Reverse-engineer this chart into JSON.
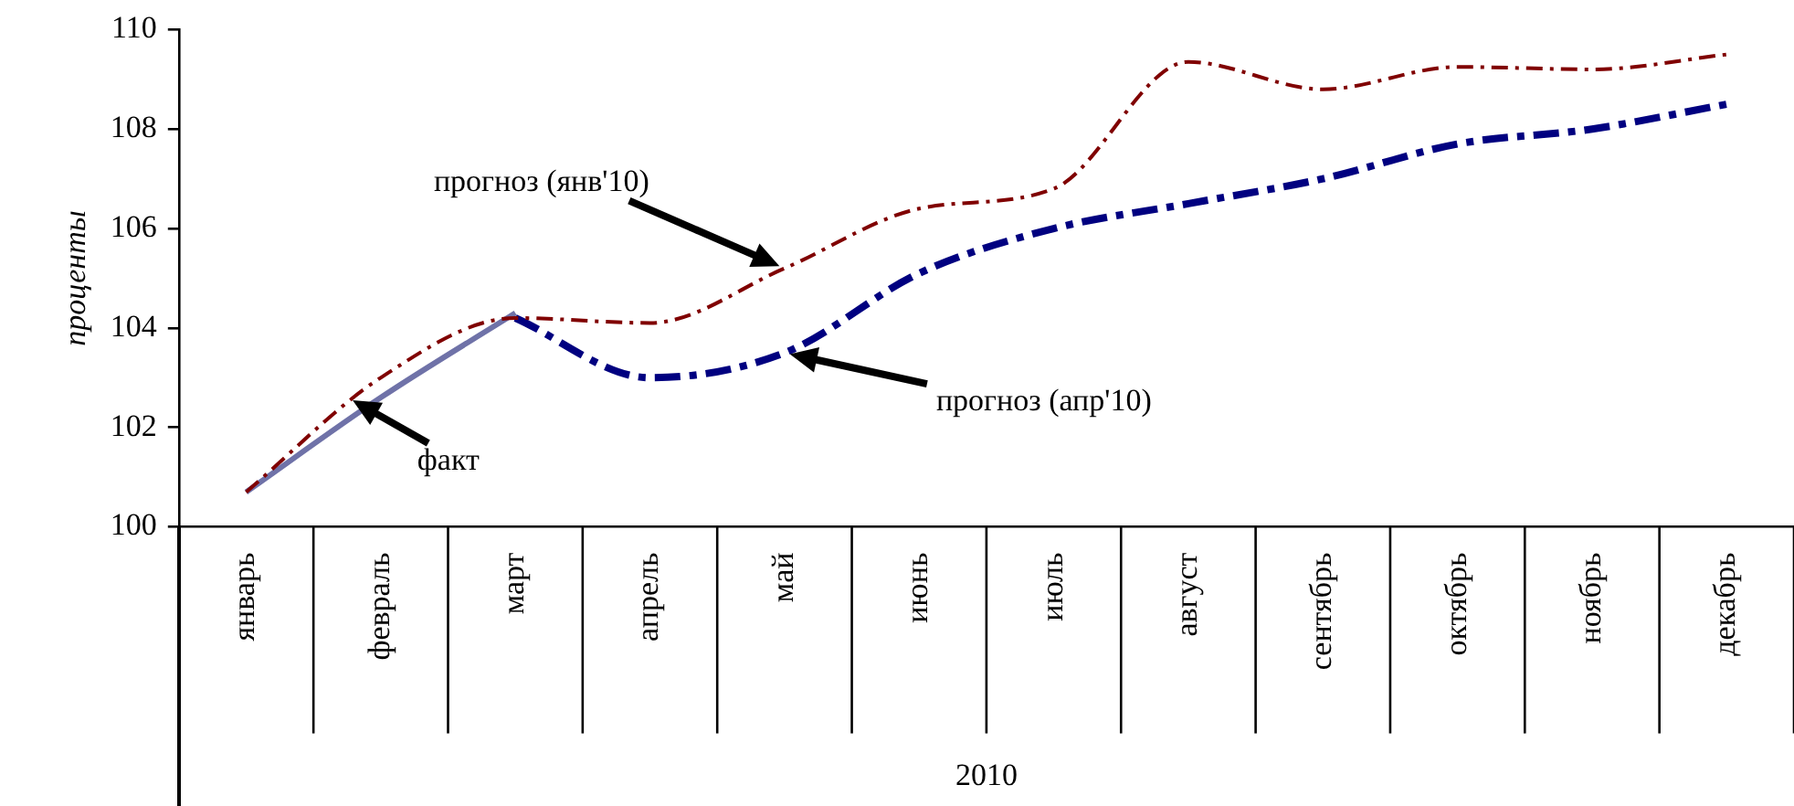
{
  "chart_data": {
    "type": "line",
    "ylabel": "проценты",
    "xlabel": "2010",
    "categories": [
      "январь",
      "февраль",
      "март",
      "апрель",
      "май",
      "июнь",
      "июль",
      "август",
      "сентябрь",
      "октябрь",
      "ноябрь",
      "декабрь"
    ],
    "series": [
      {
        "color": "#800000",
        "line_style": "dashed",
        "values": [
          100.7,
          103.0,
          104.2,
          104.1,
          105.2,
          106.4,
          106.8,
          109.35,
          108.8,
          109.25,
          109.2,
          109.5
        ]
      },
      {
        "color": "#000080",
        "line_style": "dashed",
        "values": [
          null,
          null,
          104.2,
          103.0,
          103.5,
          105.1,
          106.0,
          106.5,
          107.0,
          107.7,
          108.0,
          108.5
        ]
      },
      {
        "color": "#6f72a8",
        "line_style": "solid",
        "values": [
          100.7,
          102.6,
          104.3,
          null,
          null,
          null,
          null,
          null,
          null,
          null,
          null,
          null
        ]
      }
    ],
    "ylim": [
      100,
      110
    ],
    "yticks": [
      100,
      102,
      104,
      106,
      108,
      110
    ],
    "grid": false,
    "legend": false,
    "marker": "none",
    "annotations": [
      "прогноз (янв'10)",
      "прогноз (апр'10)",
      {
        "text": "факт",
        "x": "февраль",
        "y": 102.6
      }
    ]
  }
}
